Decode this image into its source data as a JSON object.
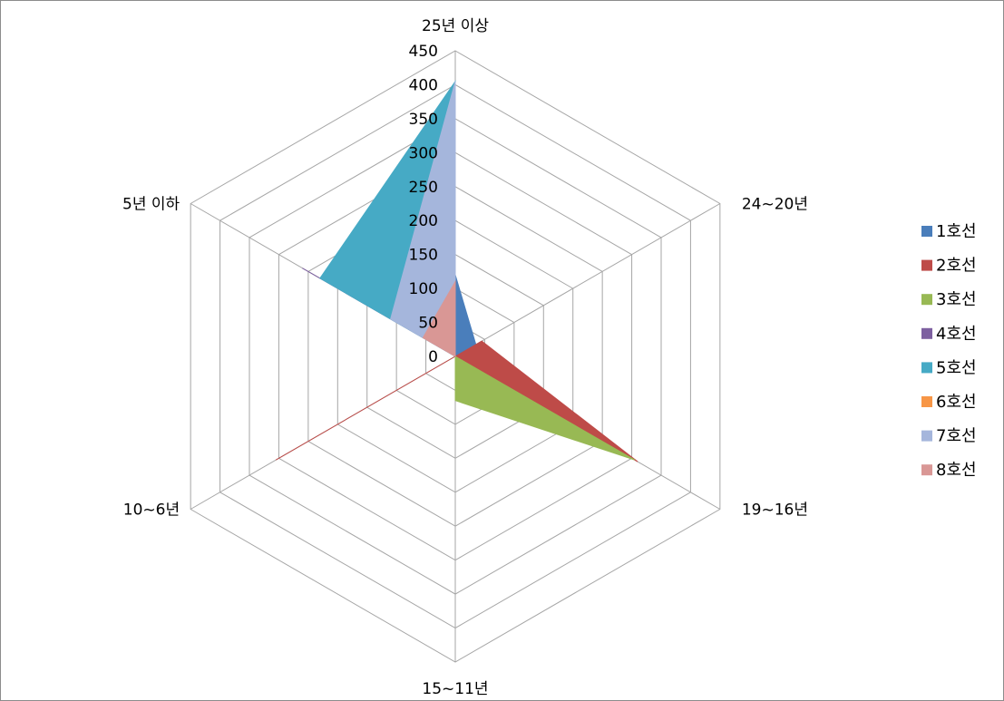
{
  "chart_data": {
    "type": "radar",
    "categories": [
      "25년 이상",
      "24~20년",
      "19~16년",
      "15~11년",
      "10~6년",
      "5년 이하"
    ],
    "rlim": [
      0,
      450
    ],
    "ticks": [
      0,
      50,
      100,
      150,
      200,
      250,
      300,
      350,
      400,
      450
    ],
    "grid": true,
    "filled": true,
    "legend_position": "right",
    "series": [
      {
        "name": "1호선",
        "color": "#4a7ebb",
        "values": [
          120,
          35,
          0,
          0,
          0,
          0
        ]
      },
      {
        "name": "2호선",
        "color": "#be4b48",
        "values": [
          0,
          45,
          310,
          0,
          305,
          0
        ]
      },
      {
        "name": "3호선",
        "color": "#98b954",
        "values": [
          0,
          0,
          305,
          65,
          0,
          0
        ]
      },
      {
        "name": "4호선",
        "color": "#7d60a0",
        "values": [
          0,
          0,
          0,
          0,
          0,
          260
        ]
      },
      {
        "name": "5호선",
        "color": "#46aac5",
        "values": [
          405,
          0,
          0,
          0,
          0,
          230
        ]
      },
      {
        "name": "6호선",
        "color": "#f79646",
        "values": [
          0,
          0,
          0,
          0,
          0,
          0
        ]
      },
      {
        "name": "7호선",
        "color": "#a5b6dc",
        "values": [
          405,
          0,
          0,
          0,
          0,
          110
        ]
      },
      {
        "name": "8호선",
        "color": "#d99795",
        "values": [
          110,
          0,
          0,
          0,
          0,
          55
        ]
      }
    ]
  }
}
